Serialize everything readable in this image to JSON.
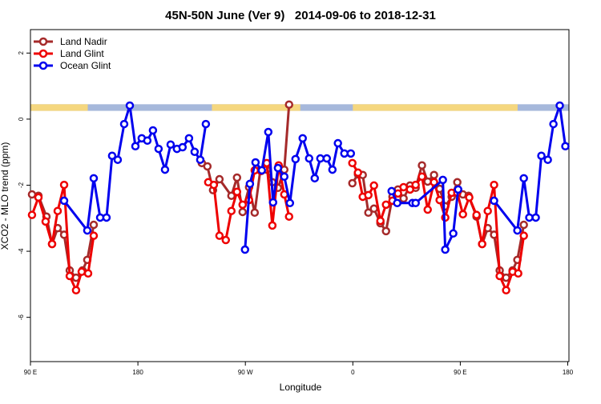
{
  "chart_data": {
    "type": "line",
    "title": "45N-50N June (Ver 9)   2014-09-06 to 2018-12-31",
    "xlabel": "Longitude",
    "ylabel": "XCO2 - MLO trend (ppm)",
    "xlim": [
      90,
      541
    ],
    "ylim": [
      -7.34,
      2.71
    ],
    "xticks": [
      {
        "value": 90,
        "label": "90 E"
      },
      180,
      {
        "value": 270,
        "label": "90 W"
      },
      {
        "value": 360,
        "label": "0"
      },
      {
        "value": 450,
        "label": "90 E"
      },
      {
        "value": 540,
        "label": "180"
      }
    ],
    "yticks": [
      2,
      0,
      -2,
      -4,
      -6
    ],
    "legend": "top-left",
    "surface_band": {
      "range": [
        0.25,
        0.45
      ],
      "ocean_color": "#a6b8db",
      "land_color": "#f5d77f",
      "land": [
        [
          90,
          138
        ],
        [
          242,
          316
        ],
        [
          360,
          498
        ]
      ]
    },
    "series": [
      {
        "name": "Land Nadir",
        "color": "#a52a2a",
        "x": [
          91.3,
          96.7,
          103.4,
          108.1,
          112.8,
          118.2,
          122.9,
          128.2,
          133.6,
          137.6,
          143.0,
          null,
          233.5,
          238.2,
          242.9,
          248.3,
          258.3,
          263.0,
          267.7,
          273.1,
          277.8,
          282.5,
          287.9,
          292.6,
          297.3,
          302.6,
          306.6,
          null,
          359.6,
          364.3,
          368.3,
          373.0,
          377.7,
          383.1,
          387.8,
          393.2,
          397.8,
          402.5,
          407.9,
          412.6,
          417.9,
          422.7,
          428.0,
          432.7,
          437.4,
          442.8,
          447.5,
          452.2,
          456.9,
          463.6,
          468.3,
          473.0,
          478.3,
          483.0,
          488.4,
          493.8,
          497.8,
          503.2
        ],
        "values": [
          -2.28,
          -2.32,
          -2.95,
          -3.78,
          -3.3,
          -3.5,
          -4.58,
          -4.8,
          -4.58,
          -4.26,
          -3.2,
          null,
          -1.33,
          -1.43,
          -2.15,
          -1.82,
          -2.32,
          -1.77,
          -2.81,
          -2.06,
          -2.83,
          -1.55,
          -1.53,
          -1.91,
          -2.08,
          -1.53,
          0.44,
          null,
          -1.94,
          -1.67,
          -1.69,
          -2.83,
          -2.71,
          -3.15,
          -3.39,
          -2.35,
          -2.13,
          -2.4,
          -2.01,
          -2.08,
          -1.4,
          -1.89,
          -1.69,
          -2.11,
          -2.64,
          -2.35,
          -1.91,
          -2.28,
          -2.32,
          -2.95,
          -3.78,
          -3.3,
          -3.5,
          -4.58,
          -4.8,
          -4.58,
          -4.26,
          -3.2
        ]
      },
      {
        "name": "Land Glint",
        "color": "#ee0000",
        "x": [
          91.3,
          96.7,
          102.7,
          108.1,
          112.8,
          118.2,
          122.9,
          128.2,
          132.9,
          138.3,
          143.0,
          null,
          238.9,
          243.6,
          248.3,
          253.6,
          258.3,
          263.0,
          267.7,
          273.1,
          277.8,
          283.2,
          287.9,
          292.6,
          297.9,
          302.6,
          306.6,
          null,
          359.6,
          364.3,
          368.3,
          373.0,
          377.7,
          383.1,
          387.8,
          393.2,
          397.8,
          402.5,
          407.9,
          412.6,
          417.9,
          422.7,
          428.0,
          432.7,
          437.4,
          442.8,
          447.5,
          452.2,
          457.5,
          463.6,
          468.3,
          473.0,
          478.3,
          483.0,
          488.4,
          493.8,
          498.5,
          503.2
        ],
        "values": [
          -2.9,
          -2.37,
          -3.1,
          -3.78,
          -2.78,
          -1.99,
          -4.75,
          -5.18,
          -4.62,
          -4.67,
          -3.53,
          null,
          -1.91,
          -1.99,
          -3.53,
          -3.66,
          -2.78,
          -2.2,
          -2.59,
          -2.45,
          -1.55,
          -1.57,
          -1.33,
          -3.22,
          -1.4,
          -2.28,
          -2.95,
          null,
          -1.33,
          -1.62,
          -2.35,
          -2.3,
          -2.01,
          -3.08,
          -2.59,
          -2.47,
          -2.25,
          -2.06,
          -2.13,
          -1.99,
          -1.74,
          -2.74,
          -1.91,
          -2.45,
          -2.98,
          -2.23,
          -2.23,
          -2.88,
          -2.37,
          -2.9,
          -3.78,
          -2.78,
          -1.99,
          -4.75,
          -5.18,
          -4.62,
          -4.67,
          -3.53
        ]
      },
      {
        "name": "Ocean Glint",
        "color": "#0000ee",
        "x": [
          118.2,
          137.6,
          143.0,
          148.4,
          153.7,
          158.4,
          163.1,
          168.5,
          173.2,
          177.9,
          183.2,
          187.9,
          192.6,
          197.3,
          202.7,
          207.4,
          212.7,
          217.4,
          222.8,
          227.5,
          232.2,
          236.9,
          null,
          269.7,
          273.8,
          278.5,
          283.8,
          289.2,
          293.2,
          297.3,
          302.6,
          307.3,
          312.0,
          318.0,
          323.4,
          328.1,
          332.8,
          338.2,
          342.9,
          347.5,
          352.9,
          358.3,
          null,
          392.5,
          397.2,
          409.9,
          412.6,
          435.4,
          437.4,
          444.1,
          448.2,
          null,
          478.3,
          497.8,
          503.2,
          507.8,
          513.2,
          517.9,
          523.3,
          528.0,
          533.3,
          538.0
        ],
        "values": [
          -2.47,
          -3.37,
          -1.79,
          -2.98,
          -2.98,
          -1.11,
          -1.23,
          -0.15,
          0.41,
          -0.82,
          -0.58,
          -0.65,
          -0.34,
          -0.9,
          -1.53,
          -0.77,
          -0.9,
          -0.85,
          -0.58,
          -0.99,
          -1.23,
          -0.15,
          null,
          -3.95,
          -1.96,
          -1.31,
          -1.55,
          -0.39,
          -2.52,
          -1.48,
          -1.74,
          -2.54,
          -1.21,
          -0.58,
          -1.19,
          -1.79,
          -1.19,
          -1.19,
          -1.53,
          -0.73,
          -1.04,
          -1.04,
          null,
          -2.18,
          -2.54,
          -2.54,
          -2.54,
          -1.84,
          -3.95,
          -3.46,
          -2.13,
          null,
          -2.47,
          -3.37,
          -1.79,
          -2.98,
          -2.98,
          -1.11,
          -1.23,
          -0.15,
          0.41,
          -0.82
        ]
      }
    ]
  }
}
